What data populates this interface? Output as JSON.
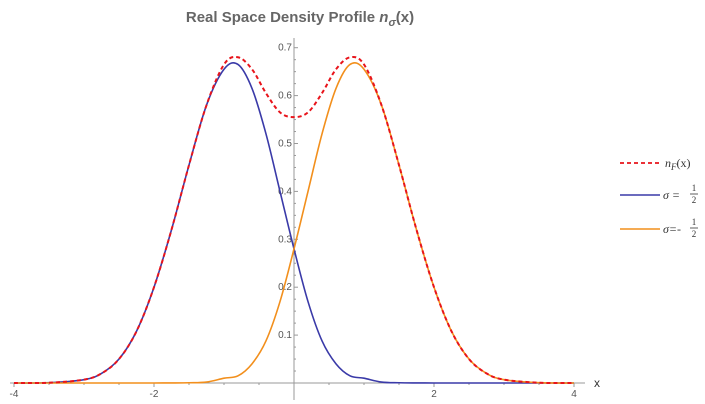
{
  "chart_data": {
    "type": "line",
    "title_main": "Real Space Density Profile ",
    "title_symbol": "n",
    "title_sub": "σ",
    "title_arg": "(x)",
    "xlabel": "x",
    "ylabel": "",
    "xlim": [
      -4,
      4
    ],
    "ylim": [
      0,
      0.7
    ],
    "x_ticks": [
      -4,
      -2,
      2,
      4
    ],
    "y_ticks": [
      0.1,
      0.2,
      0.3,
      0.4,
      0.5,
      0.6,
      0.7
    ],
    "grid": false,
    "legend_position": "right",
    "x": [
      -4,
      -3.5,
      -3,
      -2.75,
      -2.5,
      -2.25,
      -2,
      -1.75,
      -1.5,
      -1.25,
      -1,
      -0.8,
      -0.6,
      -0.4,
      -0.2,
      0,
      0.2,
      0.4,
      0.6,
      0.8,
      1,
      1.25,
      1.5,
      1.75,
      2,
      2.25,
      2.5,
      2.75,
      3,
      3.5,
      4
    ],
    "series": [
      {
        "name": "n_F(x)",
        "legend_symbol": "n",
        "legend_sub": "F",
        "legend_arg": "(x)",
        "color": "#e8141b",
        "style": "dashed",
        "values": [
          0.0,
          0.0006,
          0.007,
          0.02,
          0.05,
          0.108,
          0.2,
          0.32,
          0.455,
          0.58,
          0.665,
          0.68,
          0.655,
          0.605,
          0.565,
          0.555,
          0.565,
          0.605,
          0.655,
          0.68,
          0.665,
          0.58,
          0.455,
          0.32,
          0.2,
          0.108,
          0.05,
          0.02,
          0.007,
          0.0006,
          0.0
        ]
      },
      {
        "name": "σ = 1/2",
        "legend_prefix": "σ = ",
        "legend_num": "1",
        "legend_den": "2",
        "color": "#3a3aa8",
        "style": "solid",
        "values": [
          0.0,
          0.0006,
          0.007,
          0.02,
          0.05,
          0.108,
          0.2,
          0.32,
          0.455,
          0.58,
          0.655,
          0.665,
          0.615,
          0.52,
          0.4,
          0.28,
          0.17,
          0.088,
          0.04,
          0.015,
          0.01,
          0.002,
          0.0005,
          0.0001,
          0.0,
          0.0,
          0.0,
          0.0,
          0.0,
          0.0,
          0.0
        ]
      },
      {
        "name": "σ=-1/2",
        "legend_prefix": "σ=-",
        "legend_num": "1",
        "legend_den": "2",
        "color": "#f28f1c",
        "style": "solid",
        "values": [
          0.0,
          0.0,
          0.0,
          0.0,
          0.0,
          0.0,
          0.0,
          0.0001,
          0.0005,
          0.002,
          0.01,
          0.015,
          0.04,
          0.088,
          0.17,
          0.28,
          0.4,
          0.52,
          0.615,
          0.665,
          0.655,
          0.58,
          0.455,
          0.32,
          0.2,
          0.108,
          0.05,
          0.02,
          0.007,
          0.0006,
          0.0
        ]
      }
    ]
  }
}
